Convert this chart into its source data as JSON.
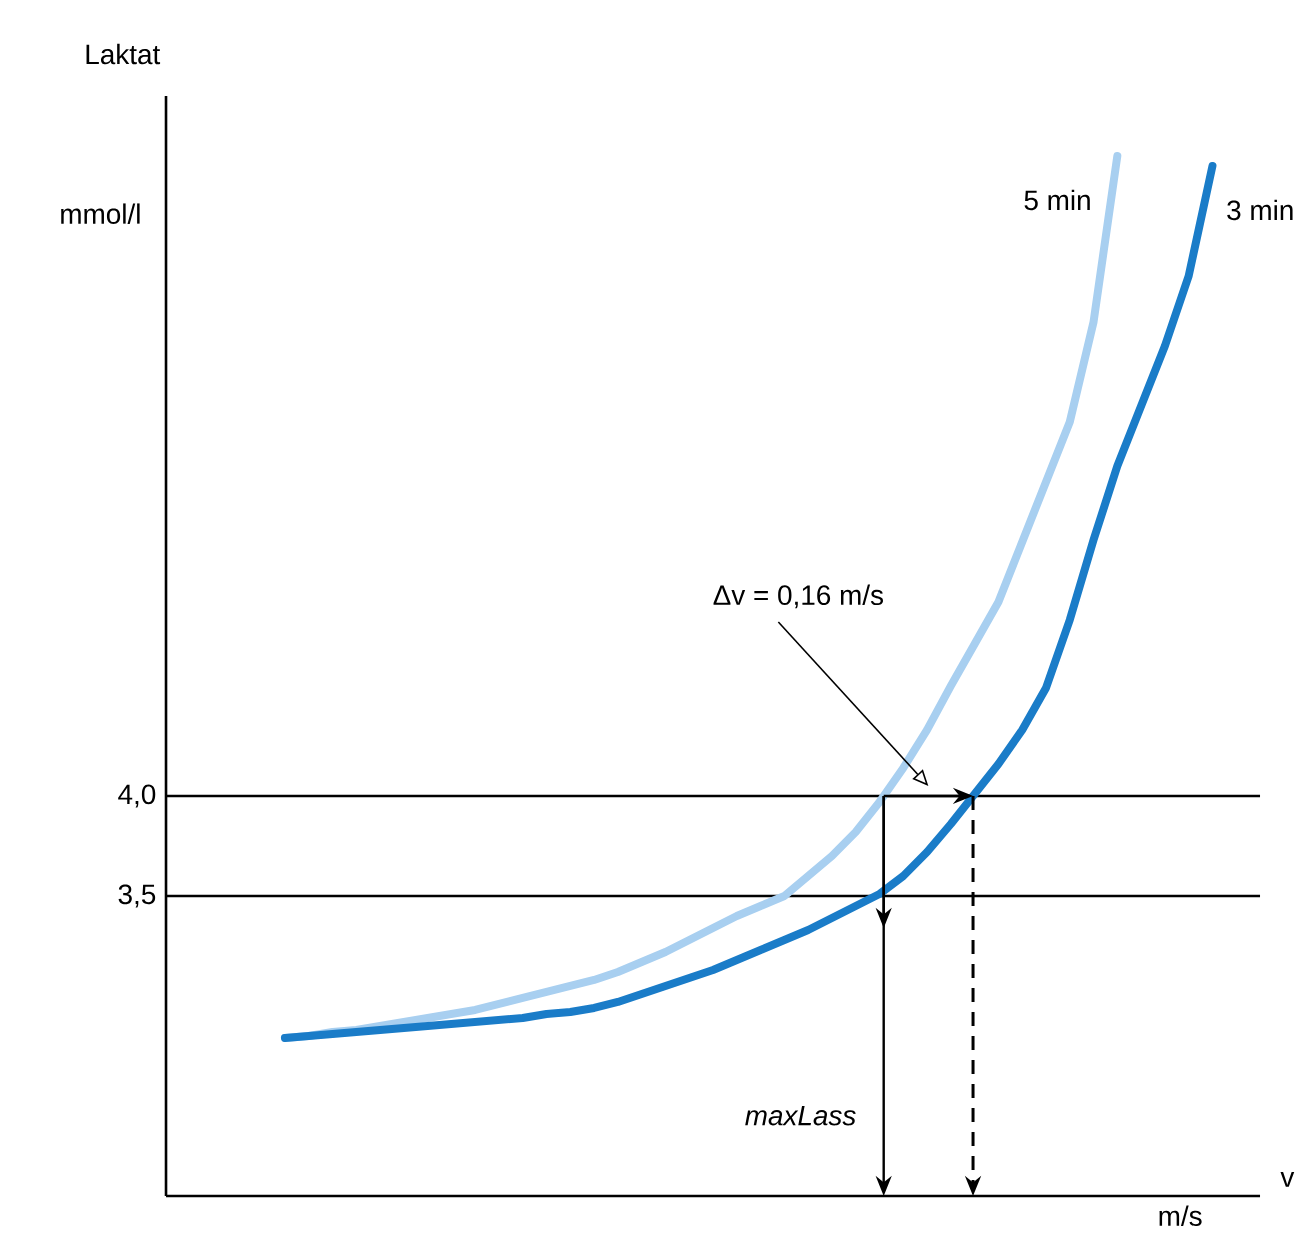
{
  "chart_data": {
    "type": "line",
    "ylabel": "Laktat",
    "categories": [
      null,
      null,
      null,
      null,
      null,
      null,
      null,
      null,
      null,
      null,
      null,
      null,
      null,
      null,
      null,
      null,
      null,
      null,
      null,
      null,
      null,
      null,
      null,
      null,
      null,
      null,
      null,
      null,
      null,
      null,
      null,
      null,
      null,
      null,
      null,
      null,
      null,
      null,
      null,
      null,
      null,
      null,
      null,
      null,
      null,
      null,
      null
    ],
    "series": [
      {
        "name": "5 min",
        "color": "#a8cff0",
        "values": [
          null,
          null,
          null,
          null,
          null,
          2.79,
          2.8,
          2.82,
          2.83,
          2.85,
          2.87,
          2.89,
          2.91,
          2.93,
          2.96,
          2.99,
          3.02,
          3.05,
          3.08,
          3.12,
          3.17,
          3.22,
          3.28,
          3.34,
          3.4,
          3.45,
          3.5,
          3.6,
          3.7,
          3.82,
          3.97,
          4.14,
          4.33,
          4.55,
          4.76,
          4.97,
          5.27,
          5.57,
          5.87,
          6.37,
          7.2,
          null,
          null,
          null,
          null,
          null,
          null
        ]
      },
      {
        "name": "3 min",
        "color": "#1a7cc8",
        "values": [
          null,
          null,
          null,
          null,
          null,
          2.79,
          2.8,
          2.81,
          2.82,
          2.83,
          2.84,
          2.85,
          2.86,
          2.87,
          2.88,
          2.89,
          2.91,
          2.92,
          2.94,
          2.97,
          3.01,
          3.05,
          3.09,
          3.13,
          3.18,
          3.23,
          3.28,
          3.33,
          3.39,
          3.45,
          3.51,
          3.6,
          3.72,
          3.86,
          4.01,
          4.16,
          4.33,
          4.54,
          4.88,
          5.28,
          5.65,
          5.95,
          6.25,
          6.6,
          7.15,
          null,
          null
        ]
      }
    ],
    "ylim": [
      2,
      7.5
    ],
    "yticks": [
      {
        "value": 3.5,
        "label": "3,5"
      },
      {
        "value": 4.0,
        "label": "4,0"
      }
    ],
    "tick_labels": "y",
    "grid": "y",
    "annotations": [
      "Δv = 0,16 m/s",
      "maxLass",
      "mmol/l",
      "m/s",
      "v"
    ],
    "legend": false,
    "line_style": "solid",
    "marker": "none"
  }
}
